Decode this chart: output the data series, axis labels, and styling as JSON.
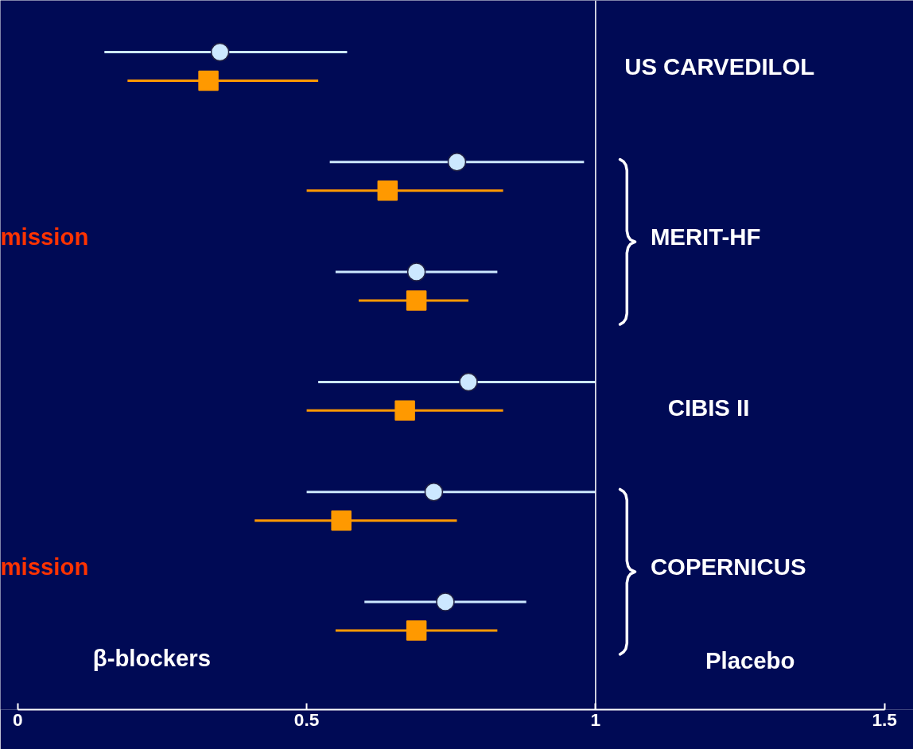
{
  "chart_data": {
    "type": "scatter",
    "orientation": "horizontal",
    "categories": [
      null,
      null,
      null,
      null,
      null,
      null
    ],
    "series": [
      {
        "color": "#cce8ff",
        "marker": "circle",
        "values": [
          0.35,
          0.76,
          0.69,
          0.78,
          0.72,
          0.74
        ],
        "errors": [
          [
            0.15,
            0.57
          ],
          [
            0.54,
            0.98
          ],
          [
            0.55,
            0.83
          ],
          [
            0.52,
            1.0
          ],
          [
            0.5,
            1.0
          ],
          [
            0.6,
            0.88
          ]
        ]
      },
      {
        "color": "#ff9900",
        "marker": "square",
        "values": [
          0.33,
          0.64,
          0.69,
          0.67,
          0.56,
          0.69
        ],
        "errors": [
          [
            0.19,
            0.52
          ],
          [
            0.5,
            0.84
          ],
          [
            0.59,
            0.78
          ],
          [
            0.5,
            0.84
          ],
          [
            0.41,
            0.76
          ],
          [
            0.55,
            0.83
          ]
        ]
      }
    ],
    "xlim": [
      -0.03,
      1.55
    ],
    "xticks": [
      0,
      0.5,
      1,
      1.5
    ],
    "tick_labels": "x",
    "ref_lines": [
      {
        "axis": "x",
        "value": 1,
        "color": "#ffffff"
      }
    ],
    "annotations": [
      "US CARVEDILOL",
      "MERIT-HF",
      "CIBIS II",
      "COPERNICUS",
      "mission",
      "mission",
      "β-blockers",
      "Placebo"
    ]
  }
}
